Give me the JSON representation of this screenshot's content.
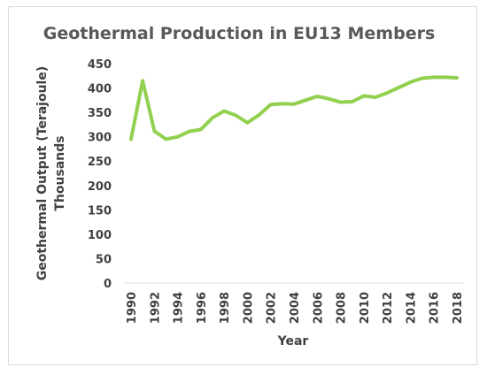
{
  "chart_data": {
    "type": "line",
    "title": "Geothermal Production in EU13 Members",
    "xlabel": "Year",
    "ylabel": "Geothermal Output (Terajoule)",
    "ylabel_sub": "Thousands",
    "ylim": [
      0,
      450
    ],
    "yticks": [
      0,
      50,
      100,
      150,
      200,
      250,
      300,
      350,
      400,
      450
    ],
    "xticks": [
      "1990",
      "1992",
      "1994",
      "1996",
      "1998",
      "2000",
      "2002",
      "2004",
      "2006",
      "2008",
      "2010",
      "2012",
      "2014",
      "2016",
      "2018"
    ],
    "grid": false,
    "legend": "none",
    "line_color": "#92d050",
    "series": [
      {
        "x": [
          1990,
          1991,
          1992,
          1993,
          1994,
          1995,
          1996,
          1997,
          1998,
          1999,
          2000,
          2001,
          2002,
          2003,
          2004,
          2005,
          2006,
          2007,
          2008,
          2009,
          2010,
          2011,
          2012,
          2013,
          2014,
          2015,
          2016,
          2017,
          2018
        ],
        "values": [
          295,
          415,
          312,
          295,
          300,
          311,
          315,
          339,
          353,
          344,
          329,
          345,
          366,
          368,
          367,
          375,
          383,
          378,
          371,
          372,
          384,
          381,
          390,
          401,
          412,
          420,
          422,
          422,
          421
        ]
      }
    ]
  }
}
